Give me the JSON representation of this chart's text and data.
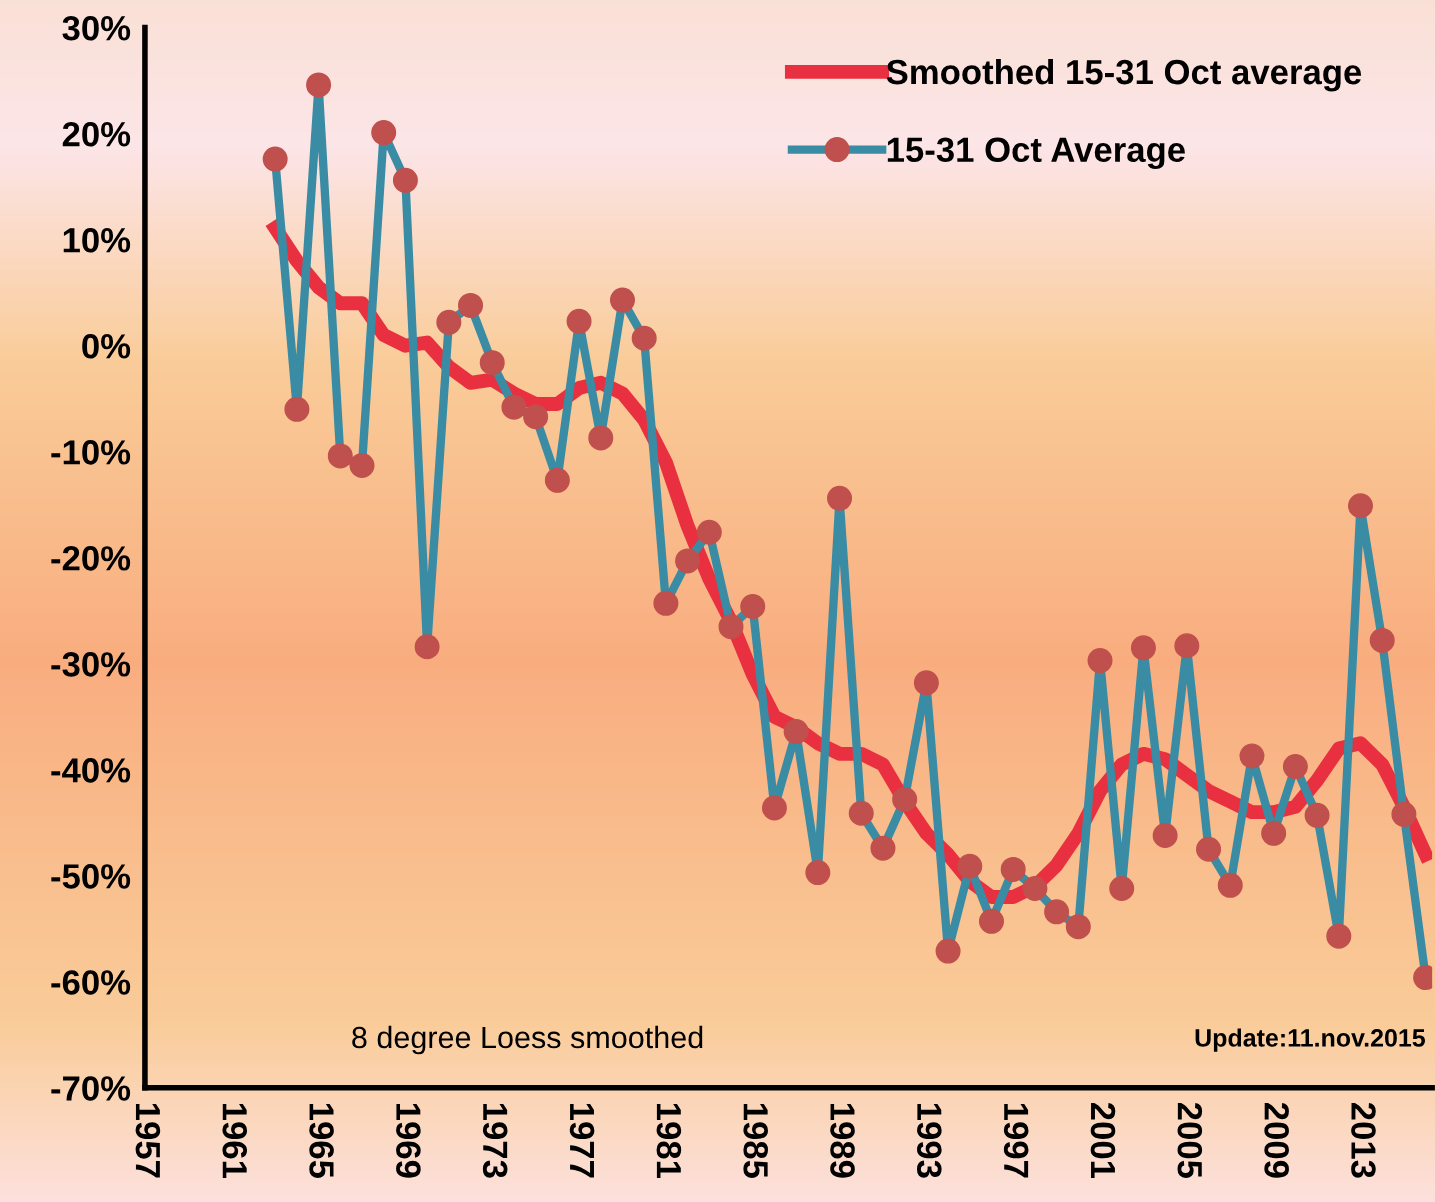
{
  "chart_data": {
    "type": "line",
    "x": [
      1963,
      1964,
      1965,
      1966,
      1967,
      1968,
      1969,
      1970,
      1971,
      1972,
      1973,
      1974,
      1975,
      1976,
      1977,
      1978,
      1979,
      1980,
      1981,
      1982,
      1983,
      1984,
      1985,
      1986,
      1987,
      1988,
      1989,
      1990,
      1991,
      1992,
      1993,
      1994,
      1995,
      1996,
      1997,
      1998,
      1999,
      2000,
      2001,
      2002,
      2003,
      2004,
      2005,
      2006,
      2007,
      2008,
      2009,
      2010,
      2011,
      2012,
      2013,
      2014,
      2015,
      2016
    ],
    "series": [
      {
        "name": "Smoothed 15-31 Oct average",
        "color": "#e83040",
        "values": [
          11.1,
          8.0,
          5.5,
          4.0,
          4.0,
          1.0,
          0.0,
          0.3,
          -2.0,
          -3.5,
          -3.2,
          -4.5,
          -5.5,
          -5.5,
          -4.0,
          -3.5,
          -4.5,
          -7.0,
          -11.0,
          -17.0,
          -22.0,
          -26.0,
          -31.0,
          -35.0,
          -36.0,
          -37.5,
          -38.5,
          -38.5,
          -39.5,
          -43.0,
          -46.0,
          -48.0,
          -50.5,
          -52.0,
          -52.0,
          -51.0,
          -49.0,
          -46.0,
          -42.0,
          -39.5,
          -38.5,
          -39.0,
          -40.5,
          -42.0,
          -43.0,
          -44.0,
          -44.0,
          -43.5,
          -41.0,
          -38.0,
          -37.5,
          -39.5,
          -43.5,
          -48.0
        ],
        "line_style": "solid"
      },
      {
        "name": "15-31 Oct Average",
        "color": "#3a8ca4",
        "marker": "circle",
        "line_style": "solid",
        "values": [
          17.6,
          -6.0,
          24.6,
          -10.4,
          -11.3,
          20.1,
          15.6,
          -28.4,
          2.2,
          3.8,
          -1.6,
          -5.8,
          -6.7,
          -12.7,
          2.3,
          -8.7,
          4.3,
          0.7,
          -24.3,
          -20.3,
          -17.6,
          -26.5,
          -24.6,
          -43.6,
          -36.4,
          -49.7,
          -14.4,
          -44.1,
          -47.4,
          -42.8,
          -31.8,
          -57.1,
          -49.1,
          -54.3,
          -49.4,
          -51.2,
          -53.4,
          -54.8,
          -29.7,
          -51.2,
          -28.5,
          -46.2,
          -28.3,
          -47.5,
          -50.9,
          -38.7,
          -46.0,
          -39.7,
          -44.3,
          -55.7,
          -15.1,
          -27.8,
          -44.2,
          -59.6
        ]
      }
    ],
    "xlim": [
      1957,
      2016.3
    ],
    "xticks": [
      1957,
      1961,
      1965,
      1969,
      1973,
      1977,
      1981,
      1985,
      1989,
      1993,
      1997,
      2001,
      2005,
      2009,
      2013
    ],
    "ylim": [
      -70,
      30
    ],
    "yticks": [
      {
        "value": 30,
        "label": "30%"
      },
      {
        "value": 20,
        "label": "20%"
      },
      {
        "value": 10,
        "label": "10%"
      },
      {
        "value": 0,
        "label": "0%"
      },
      {
        "value": -10,
        "label": "-10%"
      },
      {
        "value": -20,
        "label": "-20%"
      },
      {
        "value": -30,
        "label": "-30%"
      },
      {
        "value": -40,
        "label": "-40%"
      },
      {
        "value": -50,
        "label": "-50%"
      },
      {
        "value": -60,
        "label": "-60%"
      },
      {
        "value": -70,
        "label": "-70%"
      }
    ],
    "grid": false,
    "legend": "top right",
    "annotations": [
      "8 degree Loess smoothed",
      "Update:11.nov.2015"
    ]
  }
}
